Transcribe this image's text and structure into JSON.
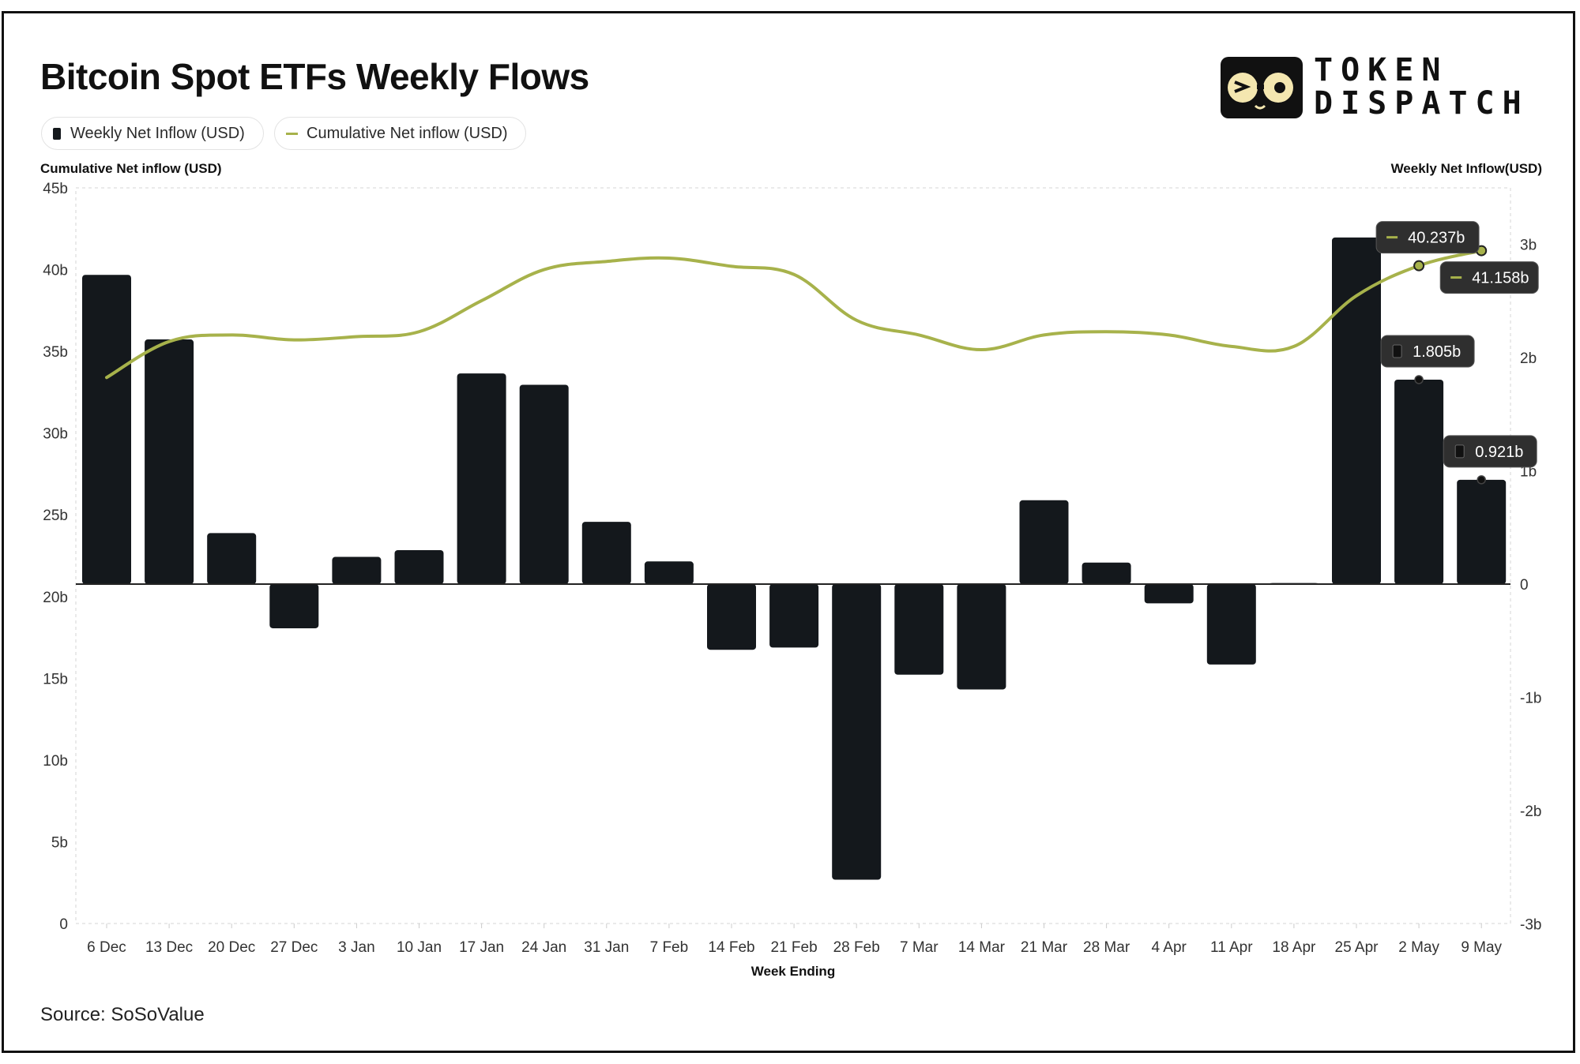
{
  "title": "Bitcoin Spot ETFs Weekly Flows",
  "brand": {
    "line1": "TOKEN",
    "line2": "DISPATCH"
  },
  "legend": {
    "bar_label": "Weekly Net Inflow (USD)",
    "line_label": "Cumulative Net inflow (USD)"
  },
  "source": "Source: SoSoValue",
  "colors": {
    "bar": "#14181c",
    "line": "#a7b24b",
    "tooltip_bg": "#2f2f2f",
    "zero_line": "#222222"
  },
  "chart_data": {
    "type": "bar",
    "title": "Bitcoin Spot ETFs Weekly Flows",
    "xlabel": "Week Ending",
    "ylabel_left": "Cumulative Net inflow (USD)",
    "ylabel_right": "Weekly Net Inflow(USD)",
    "categories": [
      "6 Dec",
      "13 Dec",
      "20 Dec",
      "27 Dec",
      "3 Jan",
      "10 Jan",
      "17 Jan",
      "24 Jan",
      "31 Jan",
      "7 Feb",
      "14 Feb",
      "21 Feb",
      "28 Feb",
      "7 Mar",
      "14 Mar",
      "21 Mar",
      "28 Mar",
      "4 Apr",
      "11 Apr",
      "18 Apr",
      "25 Apr",
      "2 May",
      "9 May"
    ],
    "left_axis": {
      "ylim": [
        0,
        45
      ],
      "ticks": [
        0,
        5,
        10,
        15,
        20,
        25,
        30,
        35,
        40,
        45
      ],
      "tick_labels": [
        "0",
        "5b",
        "10b",
        "15b",
        "20b",
        "25b",
        "30b",
        "35b",
        "40b",
        "45b"
      ]
    },
    "right_axis": {
      "ylim": [
        -3,
        3.5
      ],
      "ticks": [
        -3,
        -2,
        -1,
        0,
        1,
        2,
        3
      ],
      "tick_labels": [
        "-3b",
        "-2b",
        "-1b",
        "0",
        "1b",
        "2b",
        "3b"
      ]
    },
    "series": [
      {
        "name": "Weekly Net Inflow (USD)",
        "type": "bar",
        "axis": "right",
        "values": [
          2.73,
          2.16,
          0.45,
          -0.39,
          0.24,
          0.3,
          1.86,
          1.76,
          0.55,
          0.2,
          -0.58,
          -0.56,
          -2.61,
          -0.8,
          -0.93,
          0.74,
          0.19,
          -0.17,
          -0.71,
          0.01,
          3.06,
          1.805,
          0.921
        ]
      },
      {
        "name": "Cumulative Net inflow (USD)",
        "type": "line",
        "axis": "left",
        "values": [
          33.4,
          35.6,
          36.0,
          35.7,
          35.9,
          36.2,
          38.1,
          40.0,
          40.5,
          40.7,
          40.2,
          39.7,
          36.9,
          36.0,
          35.1,
          36.0,
          36.2,
          36.0,
          35.3,
          35.3,
          38.4,
          40.237,
          41.158
        ]
      }
    ],
    "annotations": [
      {
        "series": "line",
        "category": "2 May",
        "label": "40.237b"
      },
      {
        "series": "line",
        "category": "9 May",
        "label": "41.158b"
      },
      {
        "series": "bar",
        "category": "2 May",
        "label": "1.805b"
      },
      {
        "series": "bar",
        "category": "9 May",
        "label": "0.921b"
      }
    ],
    "grid": false,
    "legend_position": "top-left"
  }
}
